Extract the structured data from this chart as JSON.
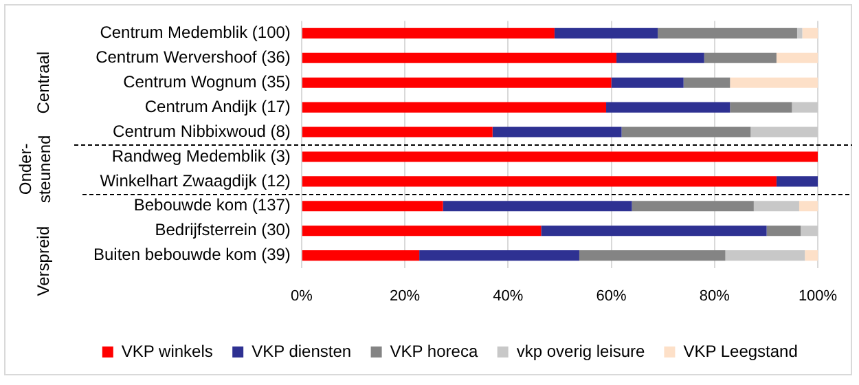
{
  "chart_data": {
    "type": "bar",
    "orientation": "horizontal",
    "stacked": true,
    "categories": [
      "Centrum Medemblik (100)",
      "Centrum Wervershoof (36)",
      "Centrum Wognum (35)",
      "Centrum Andijk (17)",
      "Centrum Nibbixwoud (8)",
      "Randweg Medemblik (3)",
      "Winkelhart Zwaagdijk (12)",
      "Bebouwde kom (137)",
      "Bedrijfsterrein (30)",
      "Buiten bebouwde kom (39)"
    ],
    "series": [
      {
        "name": "VKP winkels",
        "color": "#ff0000",
        "values": [
          49,
          61,
          60,
          59,
          37,
          100,
          92,
          27.4,
          46.4,
          22.8
        ]
      },
      {
        "name": "VKP diensten",
        "color": "#2e3192",
        "values": [
          20,
          17,
          14,
          24,
          25,
          0,
          8,
          36.6,
          43.7,
          31
        ]
      },
      {
        "name": "VKP horeca",
        "color": "#848484",
        "values": [
          27,
          14,
          9,
          12,
          25,
          0,
          0,
          23.6,
          6.6,
          28.3
        ]
      },
      {
        "name": "vkp overig leisure",
        "color": "#c8c8c8",
        "values": [
          1,
          0,
          0,
          5,
          13,
          0,
          0,
          8.8,
          3.3,
          15.4
        ]
      },
      {
        "name": "VKP Leegstand",
        "color": "#fde0c8",
        "values": [
          3,
          8,
          17,
          0,
          0,
          0,
          0,
          3.6,
          0,
          2.5
        ]
      }
    ],
    "xlim": [
      0,
      100
    ],
    "xticks": [
      {
        "value": 0,
        "label": "0%"
      },
      {
        "value": 20,
        "label": "20%"
      },
      {
        "value": 40,
        "label": "40%"
      },
      {
        "value": 60,
        "label": "60%"
      },
      {
        "value": 80,
        "label": "80%"
      },
      {
        "value": 100,
        "label": "100%"
      }
    ],
    "grid": "x",
    "legend": "bottom",
    "annotations": [
      "Centraal",
      "Onder-steunend",
      "Verspreid"
    ]
  }
}
